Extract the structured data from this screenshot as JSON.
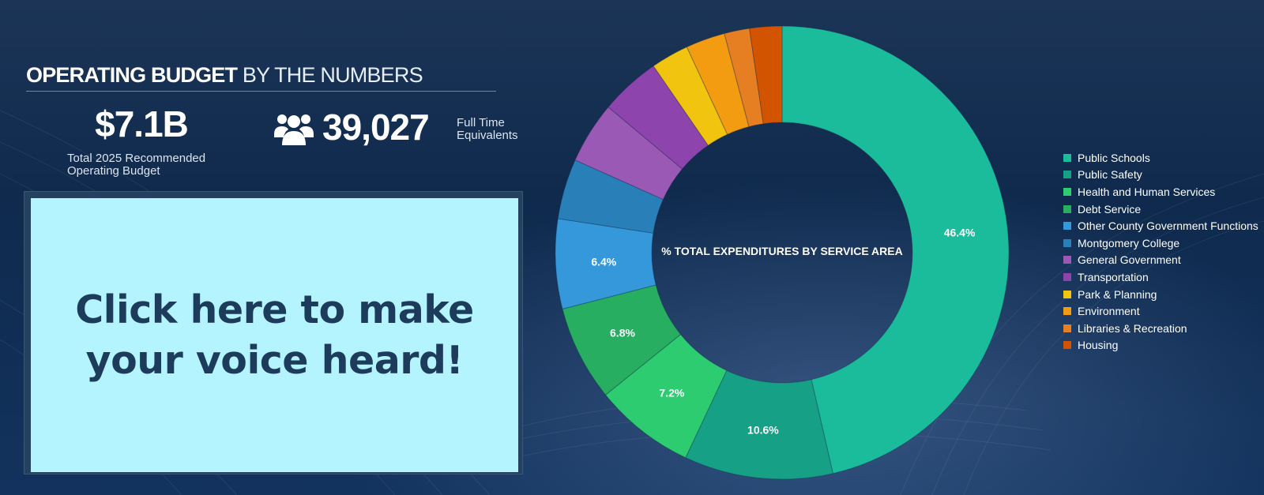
{
  "header": {
    "title_bold": "OPERATING BUDGET",
    "title_light": "BY THE NUMBERS"
  },
  "stats": {
    "budget_value": "$7.1B",
    "budget_label_line1": "Total 2025 Recommended",
    "budget_label_line2": "Operating Budget",
    "fte_value": "39,027",
    "fte_label_line1": "Full Time",
    "fte_label_line2": "Equivalents",
    "fte_icon": "people-group-icon"
  },
  "cta": {
    "line1": "Click here to make",
    "line2": "your voice heard!"
  },
  "chart_data": {
    "type": "pie",
    "donut": true,
    "title": "% TOTAL EXPENDITURES BY SERVICE AREA",
    "legend_position": "right",
    "categories": [
      "Public Schools",
      "Public Safety",
      "Health and Human Services",
      "Debt Service",
      "Other County Government Functions",
      "Montgomery College",
      "General Government",
      "Transportation",
      "Park & Planning",
      "Environment",
      "Libraries & Recreation",
      "Housing"
    ],
    "values": [
      46.4,
      10.6,
      7.2,
      6.8,
      6.4,
      4.3,
      4.4,
      4.3,
      2.7,
      2.8,
      1.8,
      2.3
    ],
    "colors": [
      "#1abc9c",
      "#16a085",
      "#2ecc71",
      "#27ae60",
      "#3498db",
      "#2980b9",
      "#9b59b6",
      "#8e44ad",
      "#f1c40f",
      "#f39c12",
      "#e67e22",
      "#d35400"
    ],
    "labels_shown": [
      "46.4%",
      "10.6%",
      "7.2%",
      "6.8%",
      "6.4%",
      "",
      "",
      "",
      "",
      "",
      "",
      ""
    ]
  }
}
